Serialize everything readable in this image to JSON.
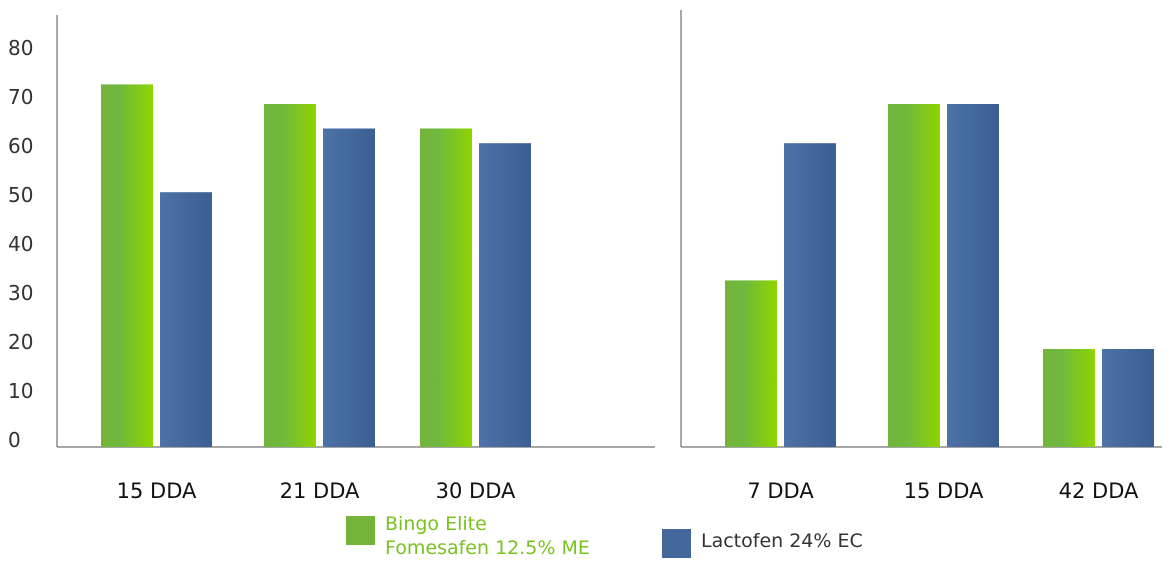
{
  "colors": {
    "green": "#79c21f",
    "blue": "#43679a",
    "axis": "#8a8a8a"
  },
  "legend": {
    "series1_line1": "Bingo Elite",
    "series1_line2": "Fomesafen 12.5% ME",
    "series2": "Lactofen 24% EC"
  },
  "chart_data": [
    {
      "type": "bar",
      "categories": [
        "15 DDA",
        "21 DDA",
        "30 DDA"
      ],
      "yticks": [
        "0",
        "10",
        "20",
        "30",
        "40",
        "50",
        "60",
        "70",
        "80"
      ],
      "ylim": [
        0,
        80
      ],
      "series": [
        {
          "name": "Bingo Elite Fomesafen 12.5% ME",
          "values": [
            74,
            70,
            65
          ]
        },
        {
          "name": "Lactofen 24% EC",
          "values": [
            52,
            65,
            62
          ]
        }
      ]
    },
    {
      "type": "bar",
      "categories": [
        "7 DDA",
        "15 DDA",
        "42 DDA"
      ],
      "ylim": [
        0,
        80
      ],
      "series": [
        {
          "name": "Bingo Elite Fomesafen 12.5% ME",
          "values": [
            34,
            70,
            20
          ]
        },
        {
          "name": "Lactofen 24% EC",
          "values": [
            62,
            70,
            20
          ]
        }
      ]
    }
  ]
}
